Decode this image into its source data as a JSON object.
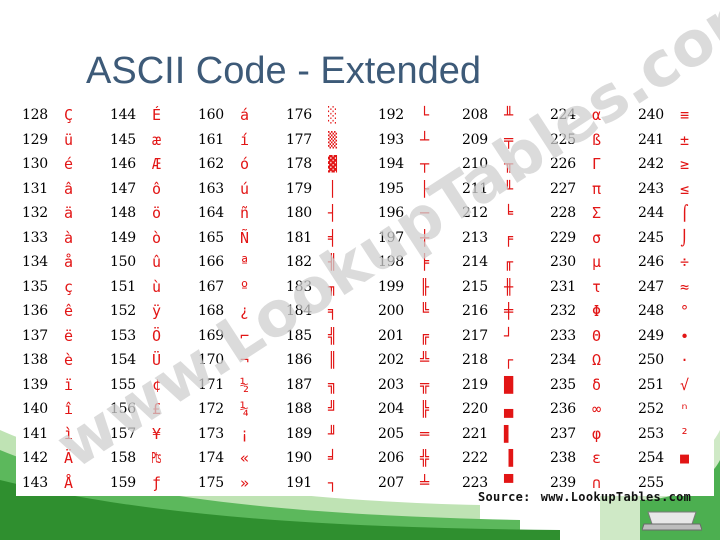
{
  "slide": {
    "title": "ASCII Code - Extended"
  },
  "table": {
    "columns": [
      {
        "rows": [
          {
            "code": "128",
            "char": "Ç"
          },
          {
            "code": "129",
            "char": "ü"
          },
          {
            "code": "130",
            "char": "é"
          },
          {
            "code": "131",
            "char": "â"
          },
          {
            "code": "132",
            "char": "ä"
          },
          {
            "code": "133",
            "char": "à"
          },
          {
            "code": "134",
            "char": "å"
          },
          {
            "code": "135",
            "char": "ç"
          },
          {
            "code": "136",
            "char": "ê"
          },
          {
            "code": "137",
            "char": "ë"
          },
          {
            "code": "138",
            "char": "è"
          },
          {
            "code": "139",
            "char": "ï"
          },
          {
            "code": "140",
            "char": "î"
          },
          {
            "code": "141",
            "char": "ì"
          },
          {
            "code": "142",
            "char": "Ä"
          },
          {
            "code": "143",
            "char": "Å"
          }
        ]
      },
      {
        "rows": [
          {
            "code": "144",
            "char": "É"
          },
          {
            "code": "145",
            "char": "æ"
          },
          {
            "code": "146",
            "char": "Æ"
          },
          {
            "code": "147",
            "char": "ô"
          },
          {
            "code": "148",
            "char": "ö"
          },
          {
            "code": "149",
            "char": "ò"
          },
          {
            "code": "150",
            "char": "û"
          },
          {
            "code": "151",
            "char": "ù"
          },
          {
            "code": "152",
            "char": "ÿ"
          },
          {
            "code": "153",
            "char": "Ö"
          },
          {
            "code": "154",
            "char": "Ü"
          },
          {
            "code": "155",
            "char": "¢"
          },
          {
            "code": "156",
            "char": "£"
          },
          {
            "code": "157",
            "char": "¥"
          },
          {
            "code": "158",
            "char": "₧"
          },
          {
            "code": "159",
            "char": "ƒ"
          }
        ]
      },
      {
        "rows": [
          {
            "code": "160",
            "char": "á"
          },
          {
            "code": "161",
            "char": "í"
          },
          {
            "code": "162",
            "char": "ó"
          },
          {
            "code": "163",
            "char": "ú"
          },
          {
            "code": "164",
            "char": "ñ"
          },
          {
            "code": "165",
            "char": "Ñ"
          },
          {
            "code": "166",
            "char": "ª"
          },
          {
            "code": "167",
            "char": "º"
          },
          {
            "code": "168",
            "char": "¿"
          },
          {
            "code": "169",
            "char": "⌐"
          },
          {
            "code": "170",
            "char": "¬"
          },
          {
            "code": "171",
            "char": "½"
          },
          {
            "code": "172",
            "char": "¼"
          },
          {
            "code": "173",
            "char": "¡"
          },
          {
            "code": "174",
            "char": "«"
          },
          {
            "code": "175",
            "char": "»"
          }
        ]
      },
      {
        "rows": [
          {
            "code": "176",
            "char": "░"
          },
          {
            "code": "177",
            "char": "▒"
          },
          {
            "code": "178",
            "char": "▓"
          },
          {
            "code": "179",
            "char": "│"
          },
          {
            "code": "180",
            "char": "┤"
          },
          {
            "code": "181",
            "char": "╡"
          },
          {
            "code": "182",
            "char": "╢"
          },
          {
            "code": "183",
            "char": "╖"
          },
          {
            "code": "184",
            "char": "╕"
          },
          {
            "code": "185",
            "char": "╣"
          },
          {
            "code": "186",
            "char": "║"
          },
          {
            "code": "187",
            "char": "╗"
          },
          {
            "code": "188",
            "char": "╝"
          },
          {
            "code": "189",
            "char": "╜"
          },
          {
            "code": "190",
            "char": "╛"
          },
          {
            "code": "191",
            "char": "┐"
          }
        ]
      },
      {
        "rows": [
          {
            "code": "192",
            "char": "└"
          },
          {
            "code": "193",
            "char": "┴"
          },
          {
            "code": "194",
            "char": "┬"
          },
          {
            "code": "195",
            "char": "├"
          },
          {
            "code": "196",
            "char": "─"
          },
          {
            "code": "197",
            "char": "┼"
          },
          {
            "code": "198",
            "char": "╞"
          },
          {
            "code": "199",
            "char": "╟"
          },
          {
            "code": "200",
            "char": "╚"
          },
          {
            "code": "201",
            "char": "╔"
          },
          {
            "code": "202",
            "char": "╩"
          },
          {
            "code": "203",
            "char": "╦"
          },
          {
            "code": "204",
            "char": "╠"
          },
          {
            "code": "205",
            "char": "═"
          },
          {
            "code": "206",
            "char": "╬"
          },
          {
            "code": "207",
            "char": "╧"
          }
        ]
      },
      {
        "rows": [
          {
            "code": "208",
            "char": "╨"
          },
          {
            "code": "209",
            "char": "╤"
          },
          {
            "code": "210",
            "char": "╥"
          },
          {
            "code": "211",
            "char": "╙"
          },
          {
            "code": "212",
            "char": "╘"
          },
          {
            "code": "213",
            "char": "╒"
          },
          {
            "code": "214",
            "char": "╓"
          },
          {
            "code": "215",
            "char": "╫"
          },
          {
            "code": "216",
            "char": "╪"
          },
          {
            "code": "217",
            "char": "┘"
          },
          {
            "code": "218",
            "char": "┌"
          },
          {
            "code": "219",
            "char": "█"
          },
          {
            "code": "220",
            "char": "▄"
          },
          {
            "code": "221",
            "char": "▌"
          },
          {
            "code": "222",
            "char": "▐"
          },
          {
            "code": "223",
            "char": "▀"
          }
        ]
      },
      {
        "rows": [
          {
            "code": "224",
            "char": "α"
          },
          {
            "code": "225",
            "char": "ß"
          },
          {
            "code": "226",
            "char": "Γ"
          },
          {
            "code": "227",
            "char": "π"
          },
          {
            "code": "228",
            "char": "Σ"
          },
          {
            "code": "229",
            "char": "σ"
          },
          {
            "code": "230",
            "char": "µ"
          },
          {
            "code": "231",
            "char": "τ"
          },
          {
            "code": "232",
            "char": "Φ"
          },
          {
            "code": "233",
            "char": "Θ"
          },
          {
            "code": "234",
            "char": "Ω"
          },
          {
            "code": "235",
            "char": "δ"
          },
          {
            "code": "236",
            "char": "∞"
          },
          {
            "code": "237",
            "char": "φ"
          },
          {
            "code": "238",
            "char": "ε"
          },
          {
            "code": "239",
            "char": "∩"
          }
        ]
      },
      {
        "rows": [
          {
            "code": "240",
            "char": "≡"
          },
          {
            "code": "241",
            "char": "±"
          },
          {
            "code": "242",
            "char": "≥"
          },
          {
            "code": "243",
            "char": "≤"
          },
          {
            "code": "244",
            "char": "⌠"
          },
          {
            "code": "245",
            "char": "⌡"
          },
          {
            "code": "246",
            "char": "÷"
          },
          {
            "code": "247",
            "char": "≈"
          },
          {
            "code": "248",
            "char": "°"
          },
          {
            "code": "249",
            "char": "∙"
          },
          {
            "code": "250",
            "char": "·"
          },
          {
            "code": "251",
            "char": "√"
          },
          {
            "code": "252",
            "char": "ⁿ"
          },
          {
            "code": "253",
            "char": "²"
          },
          {
            "code": "254",
            "char": "■"
          },
          {
            "code": "255",
            "char": ""
          }
        ]
      }
    ]
  },
  "watermark": {
    "text": "www.LookupTables.com"
  },
  "source": {
    "label": "Source:",
    "url": "www.LookupTables.com"
  },
  "colors": {
    "title": "#3d5a78",
    "glyph": "#e21515",
    "watermark": "#d4d4d4",
    "accent_green": "#3aa63a"
  }
}
